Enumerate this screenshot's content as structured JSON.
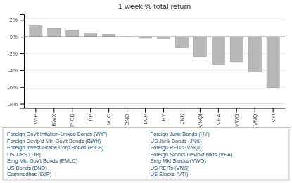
{
  "chart_data": {
    "type": "bar",
    "title": "1 week % total return",
    "categories": [
      "WIP",
      "BWX",
      "PICB",
      "TIP",
      "MLC",
      "BND",
      "DJP",
      "IHY",
      "JNK",
      "VNQI",
      "VEA",
      "VWO",
      "VNQ",
      "VTI"
    ],
    "values": [
      1.3,
      1.0,
      0.75,
      0.38,
      0.28,
      -0.05,
      -0.15,
      -0.3,
      -1.3,
      -2.4,
      -3.3,
      -3.0,
      -4.2,
      -6.1
    ],
    "color": "#b8b8b8",
    "ylim": [
      -8.5,
      2.7
    ],
    "yticks": [
      {
        "value": -8,
        "label": "-8%"
      },
      {
        "value": -6,
        "label": "-6%"
      },
      {
        "value": -4,
        "label": "-4%"
      },
      {
        "value": -2,
        "label": "-2%"
      },
      {
        "value": 0,
        "label": "0%"
      },
      {
        "value": 2,
        "label": "2%"
      }
    ],
    "grid": true,
    "annotations": [
      "Foreign Gov't Inflation-Linked Bonds (WIP)",
      "Foreign Devip'd Mkt Gov't Bonds (BWX)",
      "Foreign Invest-Grade Corp Bonds (PICB)",
      "US TIPS (TIP)",
      "Emg Mkt Gov't Bonds (EMLC)",
      "US Bonds (BND)",
      "Commodties (DJP)",
      "Foreign Junk Bonds (HY)",
      "US Junk Bonds (JNK)",
      "Foreign REITs (VNQI)",
      "Foreign Stocks Devip'd Mkts (VEA)",
      "Emg Mkt Stocks (VWO)",
      "US REITs (VNQ)",
      "US Stocks (VTI)"
    ]
  }
}
